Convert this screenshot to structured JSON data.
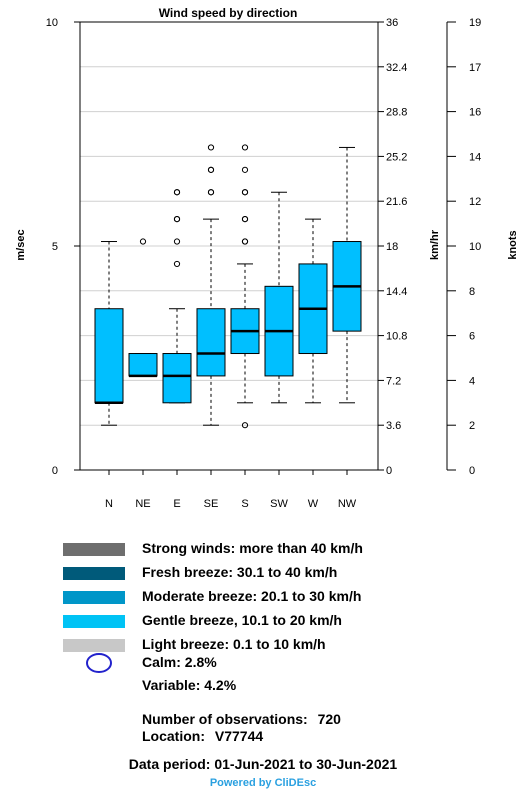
{
  "chart_data": {
    "type": "boxplot",
    "title": "Wind speed by direction",
    "ylabel_left": "m/sec",
    "ylabel_right1": "km/hr",
    "ylabel_right2": "knots",
    "ylim": [
      0,
      10
    ],
    "yticks_left": [
      "0",
      "5",
      "10"
    ],
    "yticks_kmh": [
      "0",
      "3.6",
      "7.2",
      "10.8",
      "14.4",
      "18",
      "21.6",
      "25.2",
      "28.8",
      "32.4",
      "36"
    ],
    "yticks_knots": [
      "0",
      "2",
      "4",
      "6",
      "8",
      "10",
      "12",
      "14",
      "16",
      "17",
      "19"
    ],
    "grid": true,
    "categories": [
      "N",
      "NE",
      "E",
      "SE",
      "S",
      "SW",
      "W",
      "NW"
    ],
    "boxes": [
      {
        "min": 1.0,
        "q1": 1.5,
        "median": 1.5,
        "q3": 3.6,
        "max": 5.1,
        "outliers": []
      },
      {
        "min": 2.1,
        "q1": 2.1,
        "median": 2.1,
        "q3": 2.6,
        "max": 2.6,
        "outliers": [
          5.1
        ]
      },
      {
        "min": 1.5,
        "q1": 1.5,
        "median": 2.1,
        "q3": 2.6,
        "max": 3.6,
        "outliers": [
          4.6,
          5.1,
          5.6,
          5.6,
          6.2,
          6.2
        ]
      },
      {
        "min": 1.0,
        "q1": 2.1,
        "median": 2.6,
        "q3": 3.6,
        "max": 5.6,
        "outliers": [
          6.2,
          6.2,
          6.7,
          6.7,
          7.2
        ]
      },
      {
        "min": 1.5,
        "q1": 2.6,
        "median": 3.1,
        "q3": 3.6,
        "max": 4.6,
        "outliers": [
          1.0,
          5.1,
          5.1,
          5.6,
          5.6,
          6.2,
          6.2,
          6.7,
          7.2
        ]
      },
      {
        "min": 1.5,
        "q1": 2.1,
        "median": 3.1,
        "q3": 4.1,
        "max": 6.2,
        "outliers": []
      },
      {
        "min": 1.5,
        "q1": 2.6,
        "median": 3.6,
        "q3": 4.6,
        "max": 5.6,
        "outliers": []
      },
      {
        "min": 1.5,
        "q1": 3.1,
        "median": 4.1,
        "q3": 5.1,
        "max": 7.2,
        "outliers": []
      }
    ],
    "box_color": "#00bfff"
  },
  "legend": [
    {
      "label": "Strong winds: more than 40 km/h",
      "color": "#6e6e6e"
    },
    {
      "label": "Fresh breeze: 30.1 to 40 km/h",
      "color": "#005a7a"
    },
    {
      "label": "Moderate breeze: 20.1 to 30 km/h",
      "color": "#0096c8"
    },
    {
      "label": "Gentle breeze, 10.1 to 20 km/h",
      "color": "#00c3f5"
    },
    {
      "label": "Light breeze: 0.1 to 10 km/h",
      "color": "#c8c8c8"
    }
  ],
  "calm": {
    "label": "Calm: 2.8%",
    "color": "#2222cc"
  },
  "variable": {
    "label": "Variable: 4.2%"
  },
  "observations": {
    "label": "Number of observations:",
    "value": "720"
  },
  "location": {
    "label": "Location:",
    "value": "V77744"
  },
  "period": {
    "text": "Data period: 01-Jun-2021 to 30-Jun-2021"
  },
  "powered_by": "Powered by CliDEsc"
}
